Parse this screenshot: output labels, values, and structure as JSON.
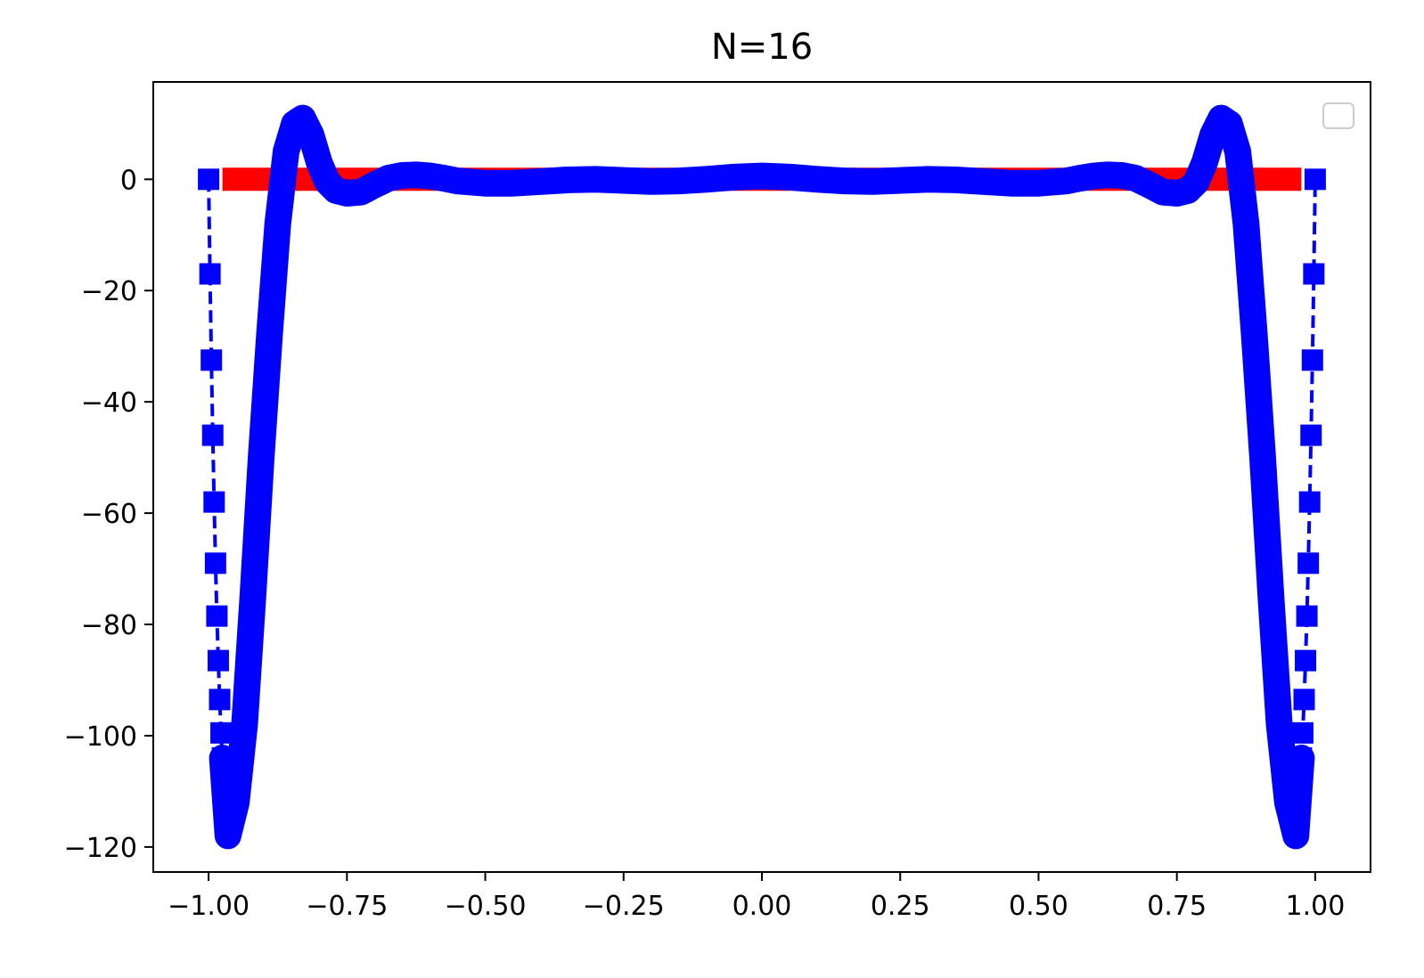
{
  "chart_data": {
    "type": "line",
    "title": "N=16",
    "xlabel": "",
    "ylabel": "",
    "xlim": [
      -1.1,
      1.1
    ],
    "ylim": [
      -124.5,
      17.5
    ],
    "x_ticks": [
      -1.0,
      -0.75,
      -0.5,
      -0.25,
      0.0,
      0.25,
      0.5,
      0.75,
      1.0
    ],
    "x_tick_labels": [
      "−1.00",
      "−0.75",
      "−0.50",
      "−0.25",
      "0.00",
      "0.25",
      "0.50",
      "0.75",
      "1.00"
    ],
    "y_ticks": [
      0,
      -20,
      -40,
      -60,
      -80,
      -100,
      -120
    ],
    "y_tick_labels": [
      "0",
      "−20",
      "−40",
      "−60",
      "−80",
      "−100",
      "−120"
    ],
    "grid": false,
    "legend": {
      "placement": "upper-right",
      "entries": []
    },
    "series": [
      {
        "role": "exact-function",
        "style": "thick-solid",
        "color": "#ff0000",
        "x": [
          -0.975,
          0.975
        ],
        "y": [
          0,
          0
        ]
      },
      {
        "role": "interpolation-nodes",
        "style": "dashed-square-markers",
        "color": "#0000ff",
        "x": [
          -1.0,
          -0.9975,
          -0.995,
          -0.9925,
          -0.99,
          -0.9875,
          -0.985,
          -0.9825,
          -0.98,
          -0.9775,
          -0.975,
          0.975,
          0.9775,
          0.98,
          0.9825,
          0.985,
          0.9875,
          0.99,
          0.9925,
          0.995,
          0.9975,
          1.0
        ],
        "y": [
          0,
          -17,
          -32.5,
          -46,
          -58,
          -69,
          -78.5,
          -86.5,
          -93.5,
          -99.5,
          -104,
          -104,
          -99.5,
          -93.5,
          -86.5,
          -78.5,
          -69,
          -58,
          -46,
          -32.5,
          -17,
          0
        ]
      },
      {
        "role": "interpolant",
        "style": "thick-solid",
        "color": "#0000ff",
        "x": [
          -0.975,
          -0.965,
          -0.95,
          -0.935,
          -0.92,
          -0.905,
          -0.89,
          -0.875,
          -0.86,
          -0.845,
          -0.83,
          -0.815,
          -0.8,
          -0.785,
          -0.77,
          -0.75,
          -0.725,
          -0.7,
          -0.675,
          -0.65,
          -0.625,
          -0.6,
          -0.575,
          -0.55,
          -0.5,
          -0.45,
          -0.4,
          -0.35,
          -0.3,
          -0.25,
          -0.2,
          -0.15,
          -0.1,
          -0.05,
          0.0,
          0.05,
          0.1,
          0.15,
          0.2,
          0.25,
          0.3,
          0.35,
          0.4,
          0.45,
          0.5,
          0.55,
          0.575,
          0.6,
          0.625,
          0.65,
          0.675,
          0.7,
          0.725,
          0.75,
          0.77,
          0.785,
          0.8,
          0.815,
          0.83,
          0.845,
          0.86,
          0.875,
          0.89,
          0.905,
          0.92,
          0.935,
          0.95,
          0.965,
          0.975
        ],
        "y": [
          -104,
          -118,
          -112,
          -98,
          -75,
          -50,
          -28,
          -8,
          5,
          10,
          11,
          8,
          3,
          -0.5,
          -2,
          -2.5,
          -2.3,
          -1.0,
          0.2,
          0.7,
          0.8,
          0.6,
          0.2,
          -0.3,
          -0.7,
          -0.7,
          -0.4,
          -0.1,
          0.0,
          -0.2,
          -0.4,
          -0.3,
          0.0,
          0.4,
          0.6,
          0.4,
          0.0,
          -0.3,
          -0.4,
          -0.2,
          0.0,
          -0.1,
          -0.4,
          -0.7,
          -0.7,
          -0.3,
          0.2,
          0.6,
          0.8,
          0.7,
          0.2,
          -1.0,
          -2.3,
          -2.5,
          -2,
          -0.5,
          3,
          8,
          11,
          10,
          5,
          -8,
          -28,
          -50,
          -75,
          -98,
          -112,
          -118,
          -104
        ]
      }
    ]
  }
}
